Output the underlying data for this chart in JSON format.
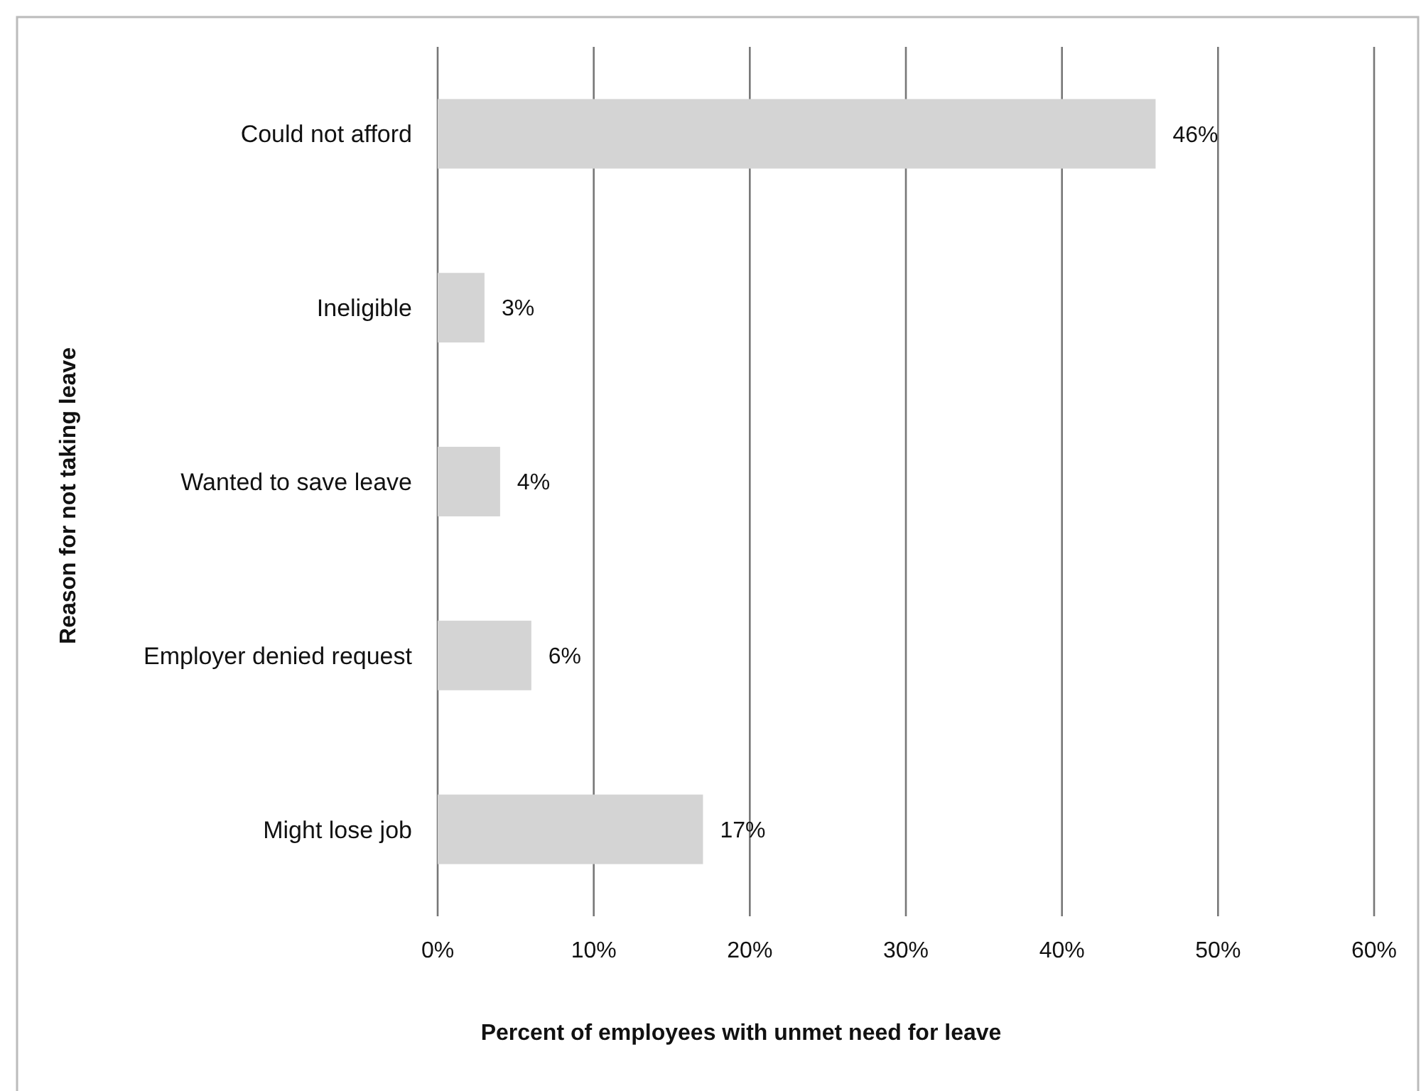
{
  "chart_data": {
    "type": "bar",
    "orientation": "horizontal",
    "xlabel": "Percent of employees with unmet need for leave",
    "ylabel": "Reason for not taking leave",
    "categories": [
      "Could not afford",
      "Ineligible",
      "Wanted to save leave",
      "Employer denied request",
      "Might lose job"
    ],
    "values": [
      46,
      3,
      4,
      6,
      17
    ],
    "color": "#d4d4d4",
    "value_labels": [
      "46%",
      "3%",
      "4%",
      "6%",
      "17%"
    ],
    "xlim": [
      0,
      60
    ],
    "xticks": [
      {
        "value": 0,
        "label": "0%"
      },
      {
        "value": 10,
        "label": "10%"
      },
      {
        "value": 20,
        "label": "20%"
      },
      {
        "value": 30,
        "label": "30%"
      },
      {
        "value": 40,
        "label": "40%"
      },
      {
        "value": 50,
        "label": "50%"
      },
      {
        "value": 60,
        "label": "60%"
      }
    ],
    "grid": "x"
  }
}
